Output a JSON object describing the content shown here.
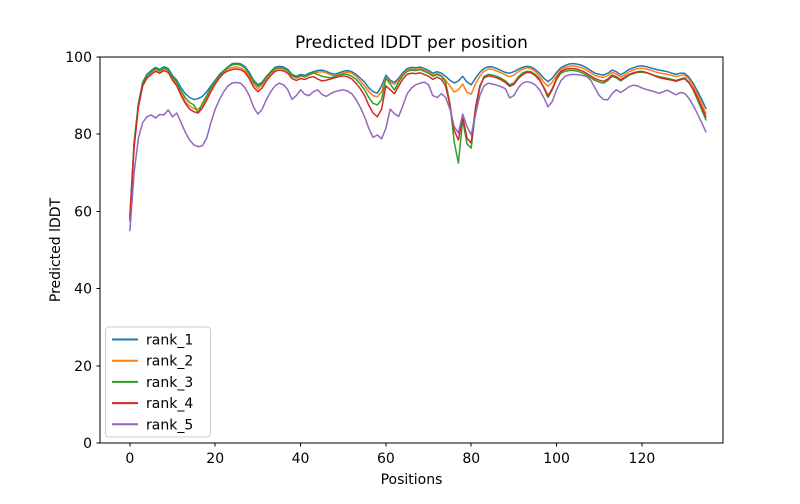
{
  "figure": {
    "background": "#ffffff",
    "border": "#000000"
  },
  "chart_data": {
    "type": "line",
    "title": "Predicted lDDT per position",
    "xlabel": "Positions",
    "ylabel": "Predicted lDDT",
    "xlim": [
      -7,
      139
    ],
    "ylim": [
      0,
      100
    ],
    "x_ticks": [
      0,
      20,
      40,
      60,
      80,
      100,
      120
    ],
    "y_ticks": [
      0,
      20,
      40,
      60,
      80,
      100
    ],
    "grid": false,
    "legend_position": "lower left",
    "legend_border_color": "#cccccc",
    "x": {
      "start": 0,
      "step": 1,
      "count": 136
    },
    "series": [
      {
        "name": "rank_1",
        "color": "#1f77b4",
        "values": [
          59,
          78,
          88,
          93.5,
          95.5,
          96.5,
          97.3,
          96.8,
          97.5,
          97,
          95.2,
          94,
          92,
          90.5,
          89.5,
          89,
          89.2,
          89.8,
          91,
          92.5,
          94,
          95.5,
          96.5,
          97.5,
          98.3,
          98.4,
          98.2,
          97.5,
          96,
          94,
          92.8,
          93.5,
          95,
          96.2,
          97.3,
          97.6,
          97.4,
          96.8,
          95.5,
          95,
          95.5,
          95.2,
          95.8,
          96.2,
          96.5,
          96.6,
          96.3,
          95.8,
          95.5,
          95.9,
          96.3,
          96.5,
          96.2,
          95.5,
          94.5,
          93.5,
          92,
          91,
          90.6,
          92.5,
          95.3,
          94,
          93.4,
          94.5,
          96,
          97,
          97.3,
          97.2,
          97.4,
          97,
          96.5,
          95.8,
          96.2,
          95.8,
          95,
          94,
          93.3,
          93.8,
          95,
          93.5,
          92.8,
          94.5,
          96,
          97,
          97.5,
          97.4,
          97,
          96.5,
          96,
          95.8,
          96.2,
          96.8,
          97.3,
          97.6,
          97.4,
          96.8,
          95.8,
          94.5,
          93.6,
          94.5,
          96,
          97.2,
          97.8,
          98.2,
          98.3,
          98.1,
          97.8,
          97.2,
          96.5,
          95.8,
          95.5,
          95.3,
          95.8,
          96.6,
          96.2,
          95.4,
          96,
          96.8,
          97.2,
          97.6,
          97.7,
          97.5,
          97.2,
          96.9,
          96.6,
          96.4,
          96.2,
          95.8,
          95.5,
          95.8,
          95.8,
          94.8,
          93.2,
          91.2,
          89,
          86.7
        ]
      },
      {
        "name": "rank_2",
        "color": "#ff7f0e",
        "values": [
          58,
          77,
          87.5,
          93,
          95,
          96,
          96.8,
          96.2,
          97,
          96.4,
          94.5,
          93,
          90.5,
          88.5,
          87.3,
          86.6,
          86.5,
          87.5,
          89.5,
          91.5,
          93.5,
          95,
          96.2,
          96.9,
          97.3,
          97.4,
          97.2,
          96.5,
          95,
          93,
          91.8,
          92.8,
          94.5,
          95.8,
          96.8,
          97.1,
          96.9,
          96.3,
          95,
          94.5,
          95,
          94.8,
          95.3,
          95.8,
          96.1,
          96.2,
          95.9,
          95.4,
          95.1,
          95.5,
          95.9,
          96.1,
          95.8,
          95,
          93.8,
          92.5,
          91,
          90,
          89.7,
          91,
          94.8,
          93.5,
          92.9,
          94,
          95.5,
          96.6,
          96.9,
          96.8,
          97,
          96.6,
          96.1,
          95.3,
          95.7,
          95.2,
          94,
          92.5,
          90.9,
          91.5,
          93,
          90.8,
          90.4,
          93,
          95,
          96.3,
          96.9,
          96.8,
          96.4,
          95.9,
          95.4,
          94.9,
          95.3,
          96.2,
          96.8,
          97.2,
          97,
          96.3,
          95,
          93.5,
          92.4,
          93.5,
          95.2,
          96.6,
          97.3,
          97.6,
          97.7,
          97.5,
          97.2,
          96.6,
          95.9,
          95.2,
          94.9,
          94.7,
          95.2,
          96,
          95.6,
          94.8,
          95.4,
          96.2,
          96.6,
          97,
          97.1,
          96.9,
          96.6,
          96.2,
          95.9,
          95.7,
          95.5,
          95.2,
          94.9,
          95.2,
          95.3,
          94.3,
          92.6,
          90.4,
          88,
          85.4
        ]
      },
      {
        "name": "rank_3",
        "color": "#2ca02c",
        "values": [
          57.5,
          77.5,
          87.8,
          93.2,
          95.2,
          96.2,
          97,
          96.5,
          97.2,
          96.7,
          94.8,
          93.5,
          91.2,
          89.4,
          88.2,
          87.6,
          85.5,
          88,
          90,
          92,
          93.8,
          95.2,
          96.4,
          97.3,
          98,
          98.1,
          97.9,
          97.2,
          95.6,
          93.6,
          92.4,
          93.2,
          94.8,
          96,
          97,
          97.3,
          97.1,
          96.5,
          95.2,
          94.7,
          95.2,
          95,
          95.5,
          95.9,
          95.5,
          95,
          94.8,
          94.6,
          94.9,
          95.3,
          95.6,
          95.5,
          95,
          94.2,
          93,
          91.5,
          89.5,
          88,
          87.6,
          89,
          94.5,
          93,
          91.5,
          93.5,
          95.2,
          96.3,
          96.6,
          96.5,
          96.7,
          96.3,
          95.8,
          95,
          95.5,
          95,
          93.5,
          88,
          78,
          72.5,
          83.7,
          77.5,
          76.4,
          86,
          92,
          95,
          95.5,
          95.3,
          95,
          94.5,
          93.8,
          92.8,
          93.3,
          94.8,
          95.8,
          96.3,
          96.2,
          95.5,
          94.3,
          92,
          89.5,
          91.5,
          94.2,
          95.8,
          96.3,
          96.5,
          96.5,
          96.3,
          95.9,
          95.3,
          94.6,
          93.9,
          93.5,
          93.2,
          93.9,
          95,
          94.6,
          93.8,
          94.5,
          95.3,
          95.7,
          96,
          96.1,
          95.9,
          95.6,
          95.2,
          94.9,
          94.7,
          94.5,
          94.2,
          93.9,
          94.3,
          94.6,
          93.5,
          91.5,
          89,
          86.3,
          83.7
        ]
      },
      {
        "name": "rank_4",
        "color": "#d62728",
        "values": [
          58.5,
          76.5,
          87,
          92.5,
          94.5,
          95.5,
          96.3,
          95.8,
          96.5,
          96,
          94,
          92.5,
          90,
          88,
          86.5,
          85.8,
          85.5,
          86.8,
          88.8,
          91,
          93,
          94.6,
          95.8,
          96.4,
          96.8,
          96.9,
          96.7,
          96,
          94.4,
          92.2,
          91,
          92,
          93.8,
          95.2,
          96.3,
          96.6,
          96.4,
          95.8,
          94.4,
          93.9,
          94.4,
          94.2,
          94.7,
          94.9,
          94.3,
          93.8,
          94,
          94.3,
          94.6,
          94.9,
          95.1,
          94.9,
          94.3,
          93.2,
          91.8,
          90,
          87.5,
          85.5,
          84.5,
          86.5,
          92.5,
          91.5,
          90.5,
          92.5,
          94.3,
          95.5,
          95.8,
          95.7,
          95.9,
          95.5,
          95,
          94.2,
          94.8,
          94.2,
          92.5,
          87.5,
          81,
          78.5,
          84.5,
          79,
          77.7,
          87,
          92.5,
          94.6,
          95.1,
          94.9,
          94.6,
          94.1,
          93.4,
          92.4,
          92.9,
          94.4,
          95.4,
          96,
          95.9,
          95.2,
          94,
          92.2,
          90,
          91.8,
          94.5,
          96.2,
          96.8,
          97,
          97,
          96.8,
          96.4,
          95.8,
          95.1,
          94.4,
          94,
          93.7,
          94.3,
          95.3,
          94.9,
          94.1,
          94.8,
          95.5,
          95.9,
          96.2,
          96.3,
          96,
          95.6,
          95.1,
          94.7,
          94.4,
          94.2,
          94,
          93.7,
          94.1,
          94.4,
          93.3,
          91.8,
          89.5,
          87,
          84.5
        ]
      },
      {
        "name": "rank_5",
        "color": "#9467bd",
        "values": [
          55,
          70,
          79,
          83,
          84.5,
          85,
          84.2,
          85.1,
          85,
          86.3,
          84.5,
          85.5,
          83,
          80.5,
          78.5,
          77.2,
          76.8,
          77,
          79,
          83,
          86.5,
          89,
          91,
          92.5,
          93.3,
          93.4,
          93.2,
          92,
          90,
          87,
          85.2,
          86.5,
          89,
          91,
          92.5,
          93.2,
          92.8,
          91.5,
          89,
          90,
          91.5,
          90.3,
          90,
          91,
          91.5,
          90.3,
          89.8,
          90.5,
          91,
          91.3,
          91.5,
          91.2,
          90.5,
          89,
          87,
          84.5,
          81.5,
          79.2,
          79.8,
          78.8,
          81.5,
          86.5,
          85.3,
          84.6,
          87.5,
          90.5,
          92,
          92.8,
          93.2,
          93.5,
          92.8,
          90,
          89.5,
          90.5,
          89.5,
          86.5,
          82,
          80.3,
          85.2,
          82,
          79.8,
          85,
          90,
          92.5,
          93.2,
          93,
          92.7,
          92.3,
          91.8,
          89.4,
          90,
          92,
          93.2,
          93.6,
          93.4,
          92.8,
          91.5,
          89.5,
          87.1,
          88.5,
          91.5,
          93.8,
          95,
          95.4,
          95.5,
          95.4,
          95.2,
          95,
          94,
          92,
          90,
          89,
          88.9,
          90.5,
          91.5,
          90.8,
          91.5,
          92.3,
          92.7,
          92.5,
          92,
          91.6,
          91.3,
          91,
          90.6,
          91,
          91.4,
          90.8,
          90.2,
          90.8,
          90.6,
          89.3,
          87.5,
          85.3,
          83,
          80.6
        ]
      }
    ]
  }
}
